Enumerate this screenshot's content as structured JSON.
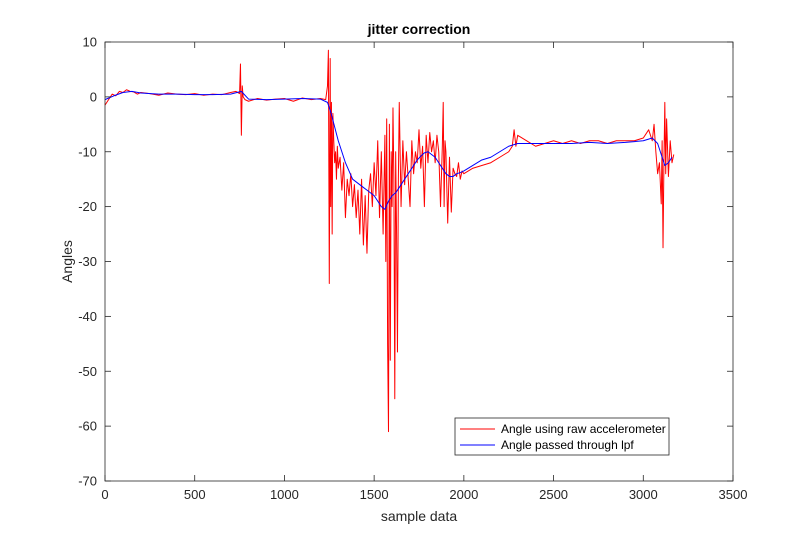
{
  "chart_data": {
    "type": "line",
    "title": "jitter correction",
    "xlabel": "sample data",
    "ylabel": "Angles",
    "xlim": [
      0,
      3500
    ],
    "ylim": [
      -70,
      10
    ],
    "xticks": [
      0,
      500,
      1000,
      1500,
      2000,
      2500,
      3000,
      3500
    ],
    "yticks": [
      10,
      0,
      -10,
      -20,
      -30,
      -40,
      -50,
      -60,
      -70
    ],
    "grid": false,
    "legend_position": "bottom-right",
    "series": [
      {
        "name": "Angle using raw accelerometer",
        "color": "#ff0000",
        "x": [
          0,
          20,
          40,
          60,
          80,
          100,
          120,
          140,
          160,
          180,
          200,
          250,
          300,
          350,
          400,
          450,
          500,
          550,
          600,
          650,
          700,
          730,
          750,
          755,
          760,
          765,
          770,
          780,
          800,
          850,
          900,
          950,
          1000,
          1050,
          1100,
          1150,
          1200,
          1230,
          1240,
          1245,
          1250,
          1255,
          1258,
          1262,
          1266,
          1270,
          1275,
          1280,
          1285,
          1290,
          1295,
          1300,
          1310,
          1320,
          1330,
          1340,
          1350,
          1360,
          1370,
          1380,
          1390,
          1400,
          1410,
          1420,
          1430,
          1440,
          1450,
          1460,
          1470,
          1480,
          1490,
          1500,
          1510,
          1520,
          1530,
          1540,
          1550,
          1560,
          1565,
          1570,
          1575,
          1580,
          1585,
          1590,
          1595,
          1600,
          1605,
          1610,
          1615,
          1620,
          1625,
          1630,
          1635,
          1640,
          1650,
          1660,
          1670,
          1680,
          1690,
          1700,
          1710,
          1720,
          1730,
          1740,
          1750,
          1760,
          1770,
          1780,
          1790,
          1800,
          1810,
          1820,
          1830,
          1840,
          1850,
          1860,
          1870,
          1880,
          1885,
          1890,
          1895,
          1900,
          1910,
          1920,
          1930,
          1940,
          1950,
          1960,
          1970,
          1980,
          1990,
          2000,
          2050,
          2100,
          2150,
          2200,
          2250,
          2270,
          2280,
          2290,
          2300,
          2350,
          2400,
          2450,
          2500,
          2550,
          2600,
          2650,
          2700,
          2750,
          2800,
          2850,
          2900,
          2950,
          3000,
          3030,
          3050,
          3060,
          3070,
          3080,
          3090,
          3100,
          3105,
          3110,
          3115,
          3120,
          3125,
          3130,
          3140,
          3150,
          3160,
          3170
        ],
        "y": [
          -1.5,
          -0.5,
          0.5,
          0.2,
          1.0,
          0.8,
          1.3,
          1.0,
          0.9,
          0.5,
          0.8,
          0.6,
          0.3,
          0.7,
          0.5,
          0.4,
          0.6,
          0.3,
          0.5,
          0.4,
          0.8,
          1.0,
          0.6,
          6.0,
          -7.0,
          2.0,
          0.0,
          -0.5,
          -0.8,
          -0.3,
          -0.6,
          -0.4,
          -0.3,
          -0.8,
          -0.2,
          -0.5,
          -0.3,
          -0.5,
          2.0,
          8.5,
          -34.0,
          7.0,
          -20.0,
          -1.0,
          -25.0,
          -3.0,
          -8.0,
          -12.0,
          -10.0,
          -15.0,
          -9.0,
          -13.0,
          -11.0,
          -17.0,
          -12.0,
          -22.0,
          -15.0,
          -18.0,
          -14.0,
          -20.0,
          -16.0,
          -22.0,
          -17.0,
          -25.0,
          -15.0,
          -27.0,
          -18.0,
          -28.5,
          -17.0,
          -14.0,
          -20.0,
          -12.0,
          -18.0,
          -8.0,
          -22.0,
          -10.0,
          -25.0,
          -7.0,
          -30.0,
          -4.0,
          -45.0,
          -61.0,
          -5.0,
          -48.0,
          -10.0,
          -20.0,
          -2.0,
          -15.0,
          -55.0,
          -10.0,
          -25.0,
          -46.5,
          -15.0,
          -1.0,
          -20.0,
          -8.0,
          -16.0,
          -10.0,
          -15.0,
          -20.0,
          -8.0,
          -14.0,
          -10.0,
          -12.0,
          -6.0,
          -13.0,
          -9.0,
          -20.0,
          -7.0,
          -12.0,
          -6.5,
          -10.0,
          -8.0,
          -12.0,
          -7.0,
          -10.0,
          -20.0,
          -9.0,
          -1.0,
          -20.0,
          -8.0,
          -10.0,
          -23.0,
          -11.0,
          -21.0,
          -13.0,
          -14.0,
          -14.5,
          -12.0,
          -15.0,
          -13.5,
          -14.0,
          -13.0,
          -12.5,
          -12.0,
          -11.0,
          -10.0,
          -9.0,
          -6.0,
          -9.0,
          -7.0,
          -8.0,
          -9.0,
          -8.5,
          -8.0,
          -8.5,
          -8.0,
          -8.5,
          -8.0,
          -8.0,
          -8.5,
          -8.0,
          -8.0,
          -8.0,
          -7.5,
          -6.0,
          -8.0,
          -5.0,
          -10.0,
          -14.0,
          -12.0,
          -19.5,
          -8.0,
          -27.5,
          -12.0,
          -1.0,
          -14.0,
          -4.0,
          -14.5,
          -8.0,
          -12.0,
          -10.5
        ]
      },
      {
        "name": "Angle passed through lpf",
        "color": "#0000ff",
        "x": [
          0,
          50,
          100,
          150,
          200,
          300,
          400,
          500,
          600,
          700,
          760,
          800,
          900,
          1000,
          1100,
          1200,
          1240,
          1260,
          1280,
          1300,
          1320,
          1340,
          1360,
          1380,
          1400,
          1420,
          1440,
          1460,
          1480,
          1500,
          1520,
          1540,
          1560,
          1580,
          1600,
          1620,
          1640,
          1660,
          1680,
          1700,
          1720,
          1740,
          1760,
          1780,
          1800,
          1820,
          1840,
          1860,
          1880,
          1900,
          1920,
          1940,
          1960,
          1980,
          2000,
          2050,
          2100,
          2150,
          2200,
          2250,
          2300,
          2350,
          2400,
          2500,
          2600,
          2700,
          2800,
          2900,
          3000,
          3050,
          3080,
          3100,
          3120,
          3140,
          3160
        ],
        "y": [
          -0.5,
          0.2,
          0.8,
          1.0,
          0.7,
          0.5,
          0.5,
          0.4,
          0.4,
          0.5,
          1.0,
          -0.4,
          -0.5,
          -0.4,
          -0.3,
          -0.4,
          -1.0,
          -3.0,
          -5.5,
          -8.0,
          -10.0,
          -12.0,
          -13.5,
          -15.0,
          -15.5,
          -16.0,
          -16.5,
          -17.0,
          -17.5,
          -18.0,
          -19.0,
          -20.0,
          -20.5,
          -19.0,
          -18.0,
          -17.5,
          -16.5,
          -15.5,
          -14.5,
          -13.5,
          -12.5,
          -11.5,
          -10.8,
          -10.2,
          -10.0,
          -10.5,
          -11.0,
          -12.0,
          -13.0,
          -14.0,
          -14.5,
          -14.5,
          -14.0,
          -13.8,
          -13.5,
          -12.5,
          -11.5,
          -11.0,
          -10.0,
          -9.0,
          -8.5,
          -8.5,
          -8.5,
          -8.5,
          -8.5,
          -8.3,
          -8.5,
          -8.3,
          -8.0,
          -7.5,
          -8.5,
          -10.5,
          -12.5,
          -12.0,
          -11.0
        ]
      }
    ]
  }
}
